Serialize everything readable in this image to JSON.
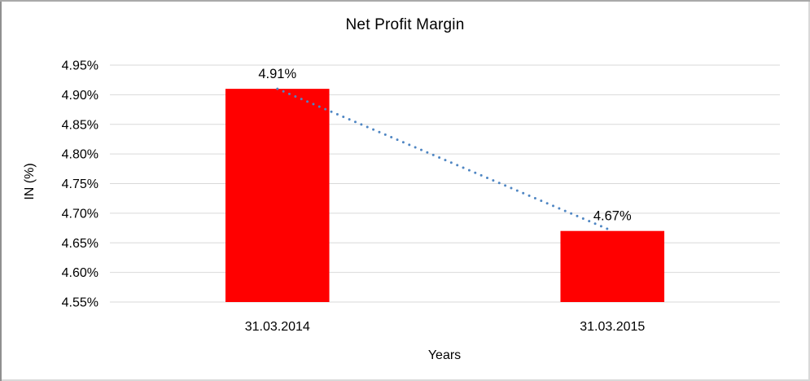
{
  "chart_data": {
    "type": "bar",
    "title": "Net Profit Margin",
    "xlabel": "Years",
    "ylabel": "IN (%)",
    "categories": [
      "31.03.2014",
      "31.03.2015"
    ],
    "values": [
      4.91,
      4.67
    ],
    "data_labels": [
      "4.91%",
      "4.67%"
    ],
    "ylim": [
      4.55,
      4.95
    ],
    "ytick_step": 0.05,
    "ytick_labels": [
      "4.95%",
      "4.90%",
      "4.85%",
      "4.80%",
      "4.75%",
      "4.70%",
      "4.65%",
      "4.60%",
      "4.55%"
    ],
    "grid": "horizontal",
    "legend": "none",
    "bar_color": "#ff0000",
    "gridline_color": "#d9d9d9",
    "text_color": "#000000",
    "bar_width_ratio": 0.31,
    "trendline": {
      "type": "linear",
      "style": "dotted",
      "color": "#4f86c3",
      "points": [
        4.91,
        4.67
      ]
    }
  }
}
